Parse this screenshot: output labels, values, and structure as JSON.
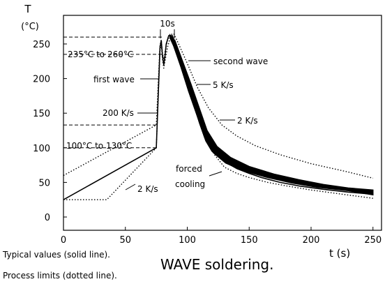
{
  "chart_data": {
    "type": "line",
    "title": "WAVE soldering.",
    "ylabel": "T",
    "yunit": "(°C)",
    "xlabel": "t (s)",
    "xlim": [
      0,
      250
    ],
    "ylim": [
      0,
      280
    ],
    "x_ticks": [
      0,
      50,
      100,
      150,
      200,
      250
    ],
    "y_ticks": [
      0,
      50,
      100,
      150,
      200,
      250
    ],
    "x_tick_labels": [
      "0",
      "50",
      "100",
      "150",
      "200",
      "250"
    ],
    "y_tick_labels": [
      "0",
      "50",
      "100",
      "150",
      "200",
      "250"
    ],
    "series": [
      {
        "style": "solid",
        "points": [
          [
            0,
            25
          ],
          [
            75,
            100
          ],
          [
            78,
            245
          ],
          [
            79,
            255
          ],
          [
            80,
            232
          ],
          [
            81,
            220
          ],
          [
            82,
            232
          ],
          [
            83,
            250
          ],
          [
            85,
            262
          ],
          [
            88,
            262
          ],
          [
            92,
            240
          ],
          [
            98,
            205
          ],
          [
            104,
            170
          ],
          [
            110,
            135
          ],
          [
            115,
            110
          ],
          [
            120,
            95
          ],
          [
            130,
            80
          ],
          [
            140,
            70
          ],
          [
            150,
            63
          ],
          [
            160,
            57
          ],
          [
            175,
            50
          ],
          [
            190,
            45
          ],
          [
            210,
            40
          ],
          [
            230,
            36
          ],
          [
            250,
            33
          ]
        ]
      },
      {
        "style": "dotted",
        "points": [
          [
            0,
            60
          ],
          [
            75,
            133
          ],
          [
            78,
            248
          ],
          [
            79,
            256
          ],
          [
            80,
            236
          ],
          [
            81,
            228
          ],
          [
            82,
            238
          ],
          [
            84,
            255
          ],
          [
            86,
            263
          ],
          [
            89,
            265
          ],
          [
            93,
            250
          ],
          [
            100,
            222
          ],
          [
            108,
            188
          ],
          [
            117,
            158
          ],
          [
            128,
            133
          ],
          [
            140,
            117
          ],
          [
            155,
            103
          ],
          [
            175,
            90
          ],
          [
            200,
            77
          ],
          [
            230,
            65
          ],
          [
            250,
            56
          ]
        ]
      },
      {
        "style": "dotted",
        "points": [
          [
            0,
            25
          ],
          [
            35,
            25
          ],
          [
            75,
            100
          ],
          [
            78,
            240
          ],
          [
            79,
            250
          ],
          [
            80,
            228
          ],
          [
            81,
            215
          ],
          [
            82,
            225
          ],
          [
            84,
            245
          ],
          [
            86,
            258
          ],
          [
            88,
            260
          ],
          [
            91,
            240
          ],
          [
            97,
            205
          ],
          [
            103,
            175
          ],
          [
            109,
            145
          ],
          [
            115,
            117
          ],
          [
            122,
            90
          ],
          [
            130,
            72
          ],
          [
            140,
            63
          ],
          [
            150,
            57
          ],
          [
            165,
            50
          ],
          [
            180,
            45
          ],
          [
            200,
            39
          ],
          [
            225,
            33
          ],
          [
            250,
            27
          ]
        ]
      }
    ],
    "band_upper": [
      [
        86,
        263
      ],
      [
        90,
        255
      ],
      [
        96,
        226
      ],
      [
        103,
        192
      ],
      [
        110,
        156
      ],
      [
        116,
        125
      ],
      [
        124,
        102
      ],
      [
        135,
        86
      ],
      [
        150,
        73
      ],
      [
        170,
        62
      ],
      [
        190,
        54
      ],
      [
        210,
        47
      ],
      [
        230,
        42
      ],
      [
        250,
        39
      ]
    ],
    "band_lower": [
      [
        86,
        259
      ],
      [
        89,
        247
      ],
      [
        95,
        216
      ],
      [
        101,
        182
      ],
      [
        108,
        146
      ],
      [
        114,
        115
      ],
      [
        121,
        93
      ],
      [
        131,
        78
      ],
      [
        145,
        67
      ],
      [
        165,
        57
      ],
      [
        185,
        49
      ],
      [
        205,
        43
      ],
      [
        230,
        38
      ],
      [
        250,
        32
      ]
    ],
    "reference_lines": [
      {
        "y": 260,
        "x_to": 80
      },
      {
        "y": 235,
        "x_to": 80
      },
      {
        "y": 133,
        "x_to": 75
      },
      {
        "y": 100,
        "x_to": 75
      }
    ],
    "annotations": {
      "ten_s": "10s",
      "range_high": "235°C to 260°C",
      "range_low": "100°C to 130°C",
      "first_wave": "first wave",
      "second_wave": "second wave",
      "rate_200": "200 K/s",
      "rate_5": "5 K/s",
      "rate_2_right": "2 K/s",
      "rate_2_left": "2 K/s",
      "forced": "forced",
      "cooling": "cooling"
    },
    "footnotes": {
      "typical": "Typical values (solid line).",
      "limits": "Process limits (dotted line)."
    }
  }
}
